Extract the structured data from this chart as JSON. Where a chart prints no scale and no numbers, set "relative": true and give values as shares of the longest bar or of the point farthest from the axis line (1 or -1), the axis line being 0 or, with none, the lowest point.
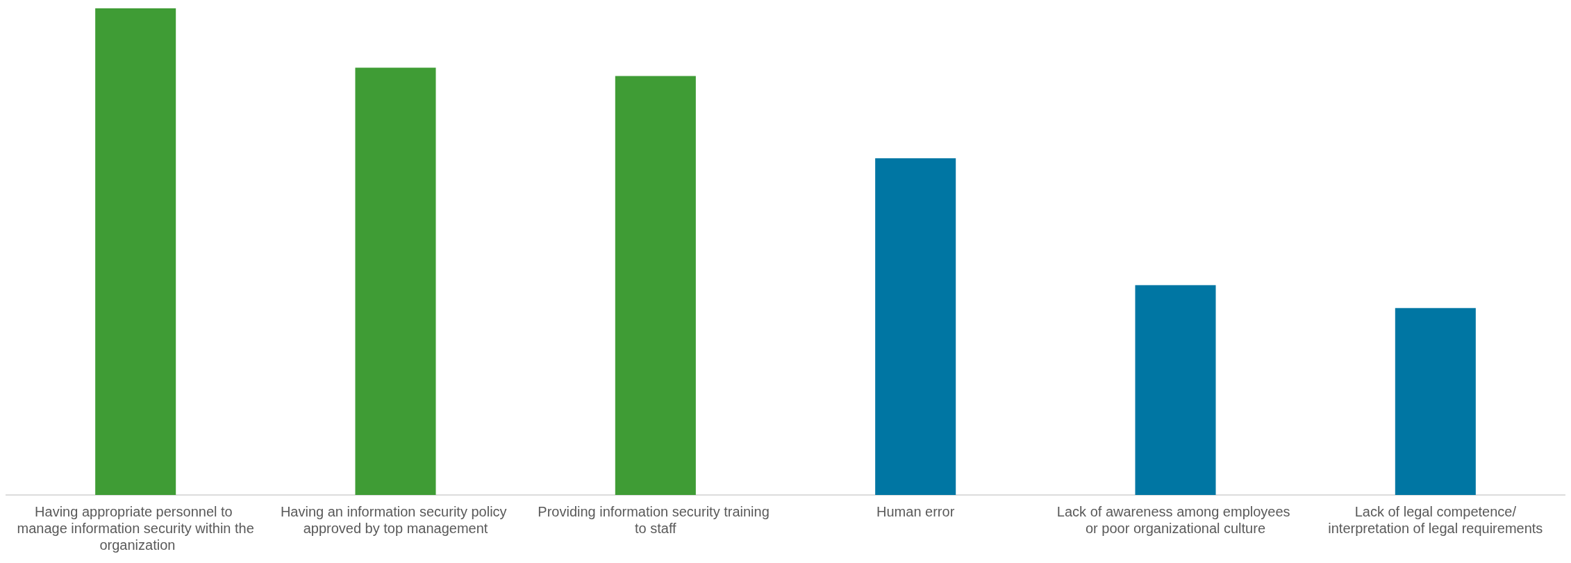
{
  "chart_data": {
    "type": "bar",
    "relative": true,
    "categories": [
      "Having appropriate personnel to manage information security within the organization",
      "Having an information security policy approved by top management",
      "Providing information security training to staff",
      "Human error",
      "Lack of awareness among employees or poor organizational culture",
      "Lack of legal competence/interpretation of legal requirements"
    ],
    "values": [
      1,
      0.878,
      0.861,
      0.692,
      0.431,
      0.384
    ],
    "colors": [
      "#3f9c35",
      "#3f9c35",
      "#3f9c35",
      "#0076a3",
      "#0076a3",
      "#0076a3"
    ],
    "data_labels": false
  }
}
